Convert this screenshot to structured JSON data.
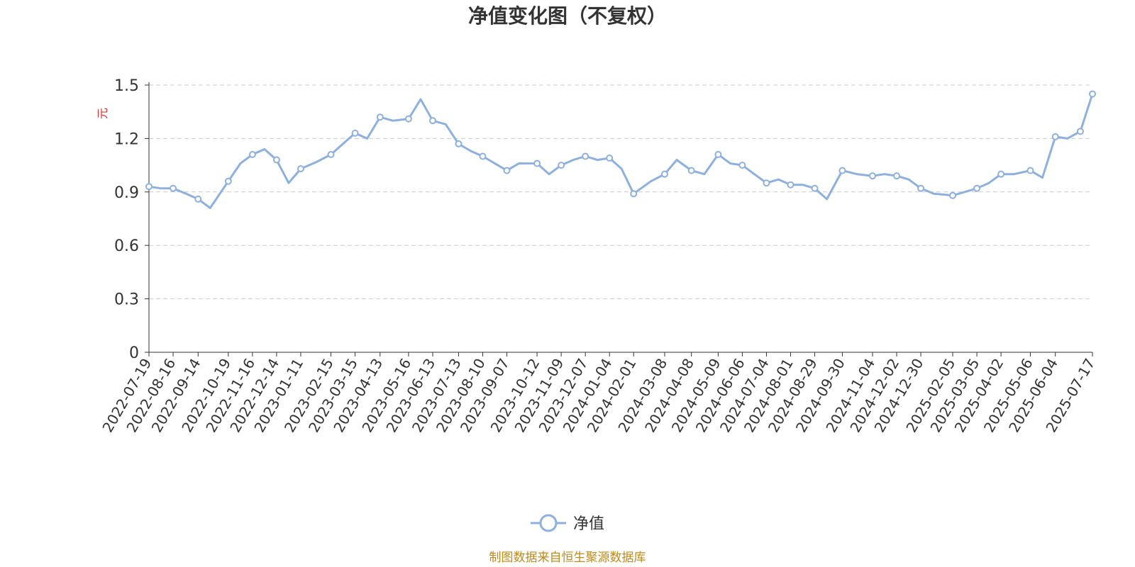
{
  "colors": {
    "series": "#8eb0dd",
    "unit": "#e0322e",
    "source": "#c08a1a",
    "grid": "#cccccc",
    "axis": "#333333"
  },
  "source_note": "制图数据来自恒生聚源数据库",
  "chart_data": {
    "type": "line",
    "title": "净值变化图（不复权）",
    "ylabel": "元",
    "xlabel": "",
    "ylim": [
      0,
      1.5
    ],
    "yticks": [
      "0",
      "0.3",
      "0.6",
      "0.9",
      "1.2",
      "1.5"
    ],
    "yticks_values": [
      0,
      0.3,
      0.6,
      0.9,
      1.2,
      1.5
    ],
    "grid": true,
    "legend_position": "bottom-center",
    "x_tick_labels": [
      "2022-07-19",
      "2022-08-16",
      "2022-09-14",
      "2022-10-19",
      "2022-11-16",
      "2022-12-14",
      "2023-01-11",
      "2023-02-15",
      "2023-03-15",
      "2023-04-13",
      "2023-05-16",
      "2023-06-13",
      "2023-07-13",
      "2023-08-10",
      "2023-09-07",
      "2023-10-12",
      "2023-11-09",
      "2023-12-07",
      "2024-01-04",
      "2024-02-01",
      "2024-03-08",
      "2024-04-08",
      "2024-05-09",
      "2024-06-06",
      "2024-07-04",
      "2024-08-01",
      "2024-08-29",
      "2024-09-30",
      "2024-11-04",
      "2024-12-02",
      "2024-12-30",
      "2025-02-05",
      "2025-03-05",
      "2025-04-02",
      "2025-05-06",
      "2025-06-04",
      "2025-07-17"
    ],
    "series": [
      {
        "name": "净值",
        "x": [
          "2022-07-19",
          "2022-08-02",
          "2022-08-16",
          "2022-08-31",
          "2022-09-14",
          "2022-09-28",
          "2022-10-19",
          "2022-11-02",
          "2022-11-16",
          "2022-11-30",
          "2022-12-14",
          "2022-12-28",
          "2023-01-11",
          "2023-01-30",
          "2023-02-15",
          "2023-03-01",
          "2023-03-15",
          "2023-03-29",
          "2023-04-13",
          "2023-04-28",
          "2023-05-16",
          "2023-05-30",
          "2023-06-13",
          "2023-06-28",
          "2023-07-13",
          "2023-07-27",
          "2023-08-10",
          "2023-08-24",
          "2023-09-07",
          "2023-09-21",
          "2023-10-12",
          "2023-10-26",
          "2023-11-09",
          "2023-11-23",
          "2023-12-07",
          "2023-12-21",
          "2024-01-04",
          "2024-01-18",
          "2024-02-01",
          "2024-02-21",
          "2024-03-08",
          "2024-03-22",
          "2024-04-08",
          "2024-04-23",
          "2024-05-09",
          "2024-05-23",
          "2024-06-06",
          "2024-06-20",
          "2024-07-04",
          "2024-07-18",
          "2024-08-01",
          "2024-08-15",
          "2024-08-29",
          "2024-09-12",
          "2024-09-30",
          "2024-10-17",
          "2024-11-04",
          "2024-11-18",
          "2024-12-02",
          "2024-12-16",
          "2024-12-30",
          "2025-01-14",
          "2025-02-05",
          "2025-02-19",
          "2025-03-05",
          "2025-03-19",
          "2025-04-02",
          "2025-04-17",
          "2025-05-06",
          "2025-05-20",
          "2025-06-04",
          "2025-06-18",
          "2025-07-03",
          "2025-07-17"
        ],
        "values": [
          0.93,
          0.92,
          0.92,
          0.89,
          0.86,
          0.81,
          0.96,
          1.06,
          1.11,
          1.14,
          1.08,
          0.95,
          1.03,
          1.07,
          1.11,
          1.17,
          1.23,
          1.2,
          1.32,
          1.3,
          1.31,
          1.42,
          1.3,
          1.28,
          1.17,
          1.13,
          1.1,
          1.06,
          1.02,
          1.06,
          1.06,
          1.0,
          1.05,
          1.08,
          1.1,
          1.08,
          1.09,
          1.03,
          0.89,
          0.96,
          1.0,
          1.08,
          1.02,
          1.0,
          1.11,
          1.06,
          1.05,
          1.0,
          0.95,
          0.97,
          0.94,
          0.94,
          0.92,
          0.86,
          1.02,
          1.0,
          0.99,
          1.0,
          0.99,
          0.97,
          0.92,
          0.89,
          0.88,
          0.9,
          0.92,
          0.95,
          1.0,
          1.0,
          1.02,
          0.98,
          1.21,
          1.2,
          1.24,
          1.45
        ]
      }
    ]
  }
}
